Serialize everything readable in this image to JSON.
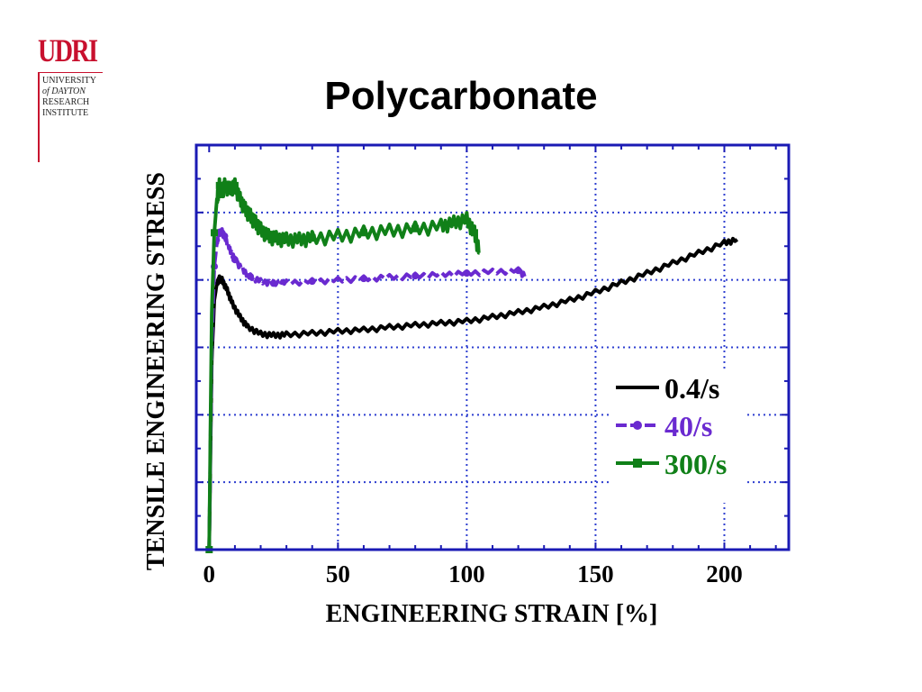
{
  "logo": {
    "mark": "UDRI",
    "lines": [
      "UNIVERSITY",
      "of DAYTON",
      "RESEARCH",
      "INSTITUTE"
    ]
  },
  "colors": {
    "frame": "#1a1ab4",
    "grid": "#2e3fd0",
    "series_0_4": "#000000",
    "series_40": "#6a2ad0",
    "series_300": "#108018",
    "logo": "#c8102e"
  },
  "chart_data": {
    "type": "line",
    "title": "Polycarbonate",
    "xlabel": "ENGINEERING STRAIN  [%]",
    "ylabel": "TENSILE ENGINEERING STRESS",
    "xlim": [
      -5,
      225
    ],
    "ylim": [
      0,
      6
    ],
    "x_ticks": [
      0,
      50,
      100,
      150,
      200
    ],
    "x_tick_labels": [
      "0",
      "50",
      "100",
      "150",
      "200"
    ],
    "y_tick_labels": [],
    "grid": true,
    "legend_position": "lower-right",
    "series": [
      {
        "name": "0.4/s",
        "color": "#000000",
        "marker": "none",
        "x": [
          0,
          1,
          2,
          3,
          4,
          5,
          7,
          9,
          12,
          15,
          20,
          25,
          30,
          40,
          50,
          60,
          70,
          80,
          90,
          100,
          110,
          120,
          130,
          140,
          150,
          160,
          170,
          180,
          190,
          200,
          205
        ],
        "y": [
          0,
          2.8,
          3.7,
          3.95,
          4.02,
          4.0,
          3.85,
          3.65,
          3.45,
          3.3,
          3.2,
          3.18,
          3.19,
          3.21,
          3.24,
          3.26,
          3.3,
          3.33,
          3.36,
          3.39,
          3.45,
          3.52,
          3.6,
          3.7,
          3.82,
          3.96,
          4.1,
          4.25,
          4.4,
          4.55,
          4.6
        ]
      },
      {
        "name": "40/s",
        "color": "#6a2ad0",
        "marker": "circle",
        "x": [
          0,
          1,
          2,
          3,
          4,
          5,
          6,
          8,
          10,
          13,
          16,
          20,
          25,
          30,
          40,
          50,
          60,
          70,
          80,
          90,
          100,
          110,
          120,
          123
        ],
        "y": [
          0,
          3.0,
          4.2,
          4.55,
          4.7,
          4.72,
          4.65,
          4.45,
          4.3,
          4.15,
          4.05,
          3.98,
          3.95,
          3.96,
          3.98,
          4.0,
          4.02,
          4.04,
          4.06,
          4.08,
          4.1,
          4.12,
          4.14,
          4.05
        ]
      },
      {
        "name": "300/s",
        "color": "#108018",
        "marker": "square",
        "x": [
          0,
          1,
          2,
          3,
          4,
          5,
          6,
          8,
          10,
          12,
          14,
          16,
          18,
          20,
          23,
          26,
          30,
          35,
          40,
          50,
          60,
          70,
          80,
          90,
          95,
          100,
          103,
          105
        ],
        "y": [
          0,
          3.5,
          4.7,
          5.2,
          5.4,
          5.3,
          5.4,
          5.35,
          5.4,
          5.2,
          5.05,
          4.95,
          4.85,
          4.75,
          4.65,
          4.62,
          4.6,
          4.6,
          4.62,
          4.65,
          4.7,
          4.73,
          4.76,
          4.8,
          4.85,
          4.9,
          4.7,
          4.4
        ]
      }
    ]
  }
}
